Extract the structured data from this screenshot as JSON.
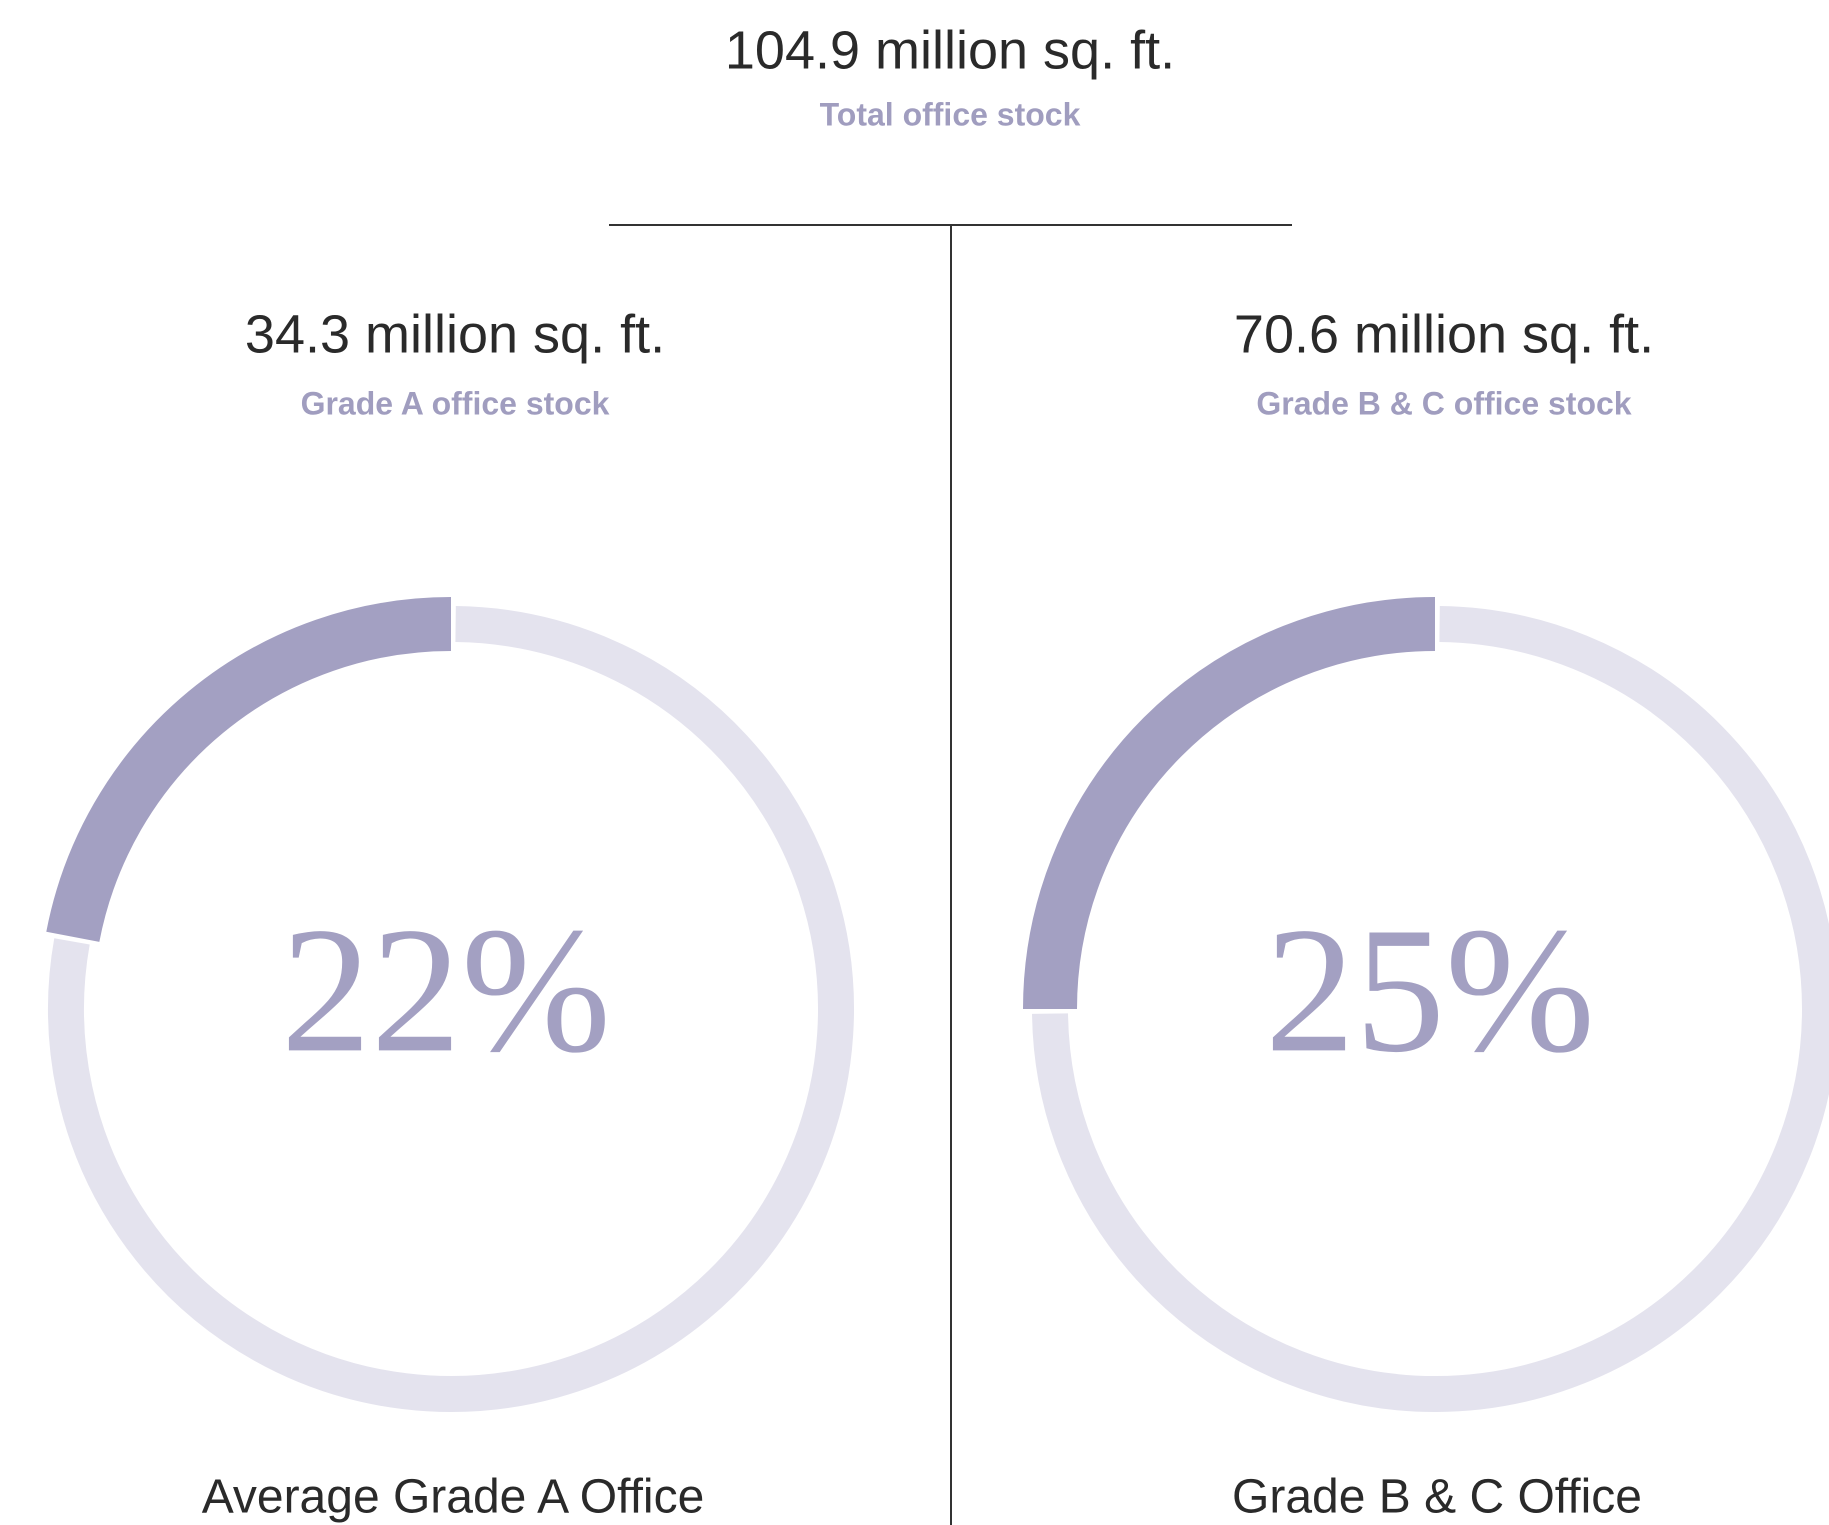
{
  "header": {
    "total": "104.9 million sq. ft.",
    "total_label": "Total office stock"
  },
  "chart_data": [
    {
      "type": "donut",
      "title": "34.3 million sq. ft.",
      "subtitle": "Grade A office stock",
      "values": [
        22
      ],
      "value_labels": [
        "22%"
      ],
      "ylim": [
        0,
        100
      ],
      "caption": "Average Grade A Office",
      "color": "#a3a0c2",
      "track_color": "#e4e3ee"
    },
    {
      "type": "donut",
      "title": "70.6 million sq. ft.",
      "subtitle": "Grade B & C office stock",
      "values": [
        25
      ],
      "value_labels": [
        "25%"
      ],
      "ylim": [
        0,
        100
      ],
      "caption": "Grade B & C Office",
      "color": "#a3a0c2",
      "track_color": "#e4e3ee"
    }
  ]
}
